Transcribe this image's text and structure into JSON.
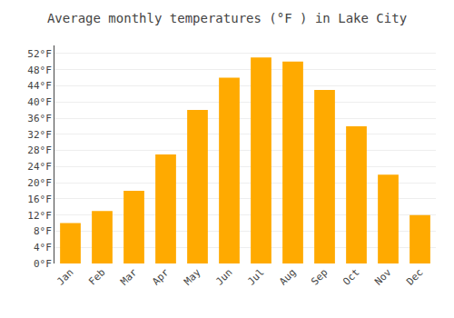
{
  "chart_data": {
    "type": "bar",
    "title": "Average monthly temperatures (°F ) in Lake City",
    "categories": [
      "Jan",
      "Feb",
      "Mar",
      "Apr",
      "May",
      "Jun",
      "Jul",
      "Aug",
      "Sep",
      "Oct",
      "Nov",
      "Dec"
    ],
    "values": [
      10,
      13,
      18,
      27,
      38,
      46,
      51,
      50,
      43,
      34,
      22,
      12
    ],
    "color": "#FFAA00",
    "ylim": [
      0,
      54
    ],
    "yticks": [
      {
        "value": 0,
        "label": "0°F"
      },
      {
        "value": 4,
        "label": "4°F"
      },
      {
        "value": 8,
        "label": "8°F"
      },
      {
        "value": 12,
        "label": "12°F"
      },
      {
        "value": 16,
        "label": "16°F"
      },
      {
        "value": 20,
        "label": "20°F"
      },
      {
        "value": 24,
        "label": "24°F"
      },
      {
        "value": 28,
        "label": "28°F"
      },
      {
        "value": 32,
        "label": "32°F"
      },
      {
        "value": 36,
        "label": "36°F"
      },
      {
        "value": 40,
        "label": "40°F"
      },
      {
        "value": 44,
        "label": "44°F"
      },
      {
        "value": 48,
        "label": "48°F"
      },
      {
        "value": 52,
        "label": "52°F"
      }
    ],
    "grid": true
  }
}
